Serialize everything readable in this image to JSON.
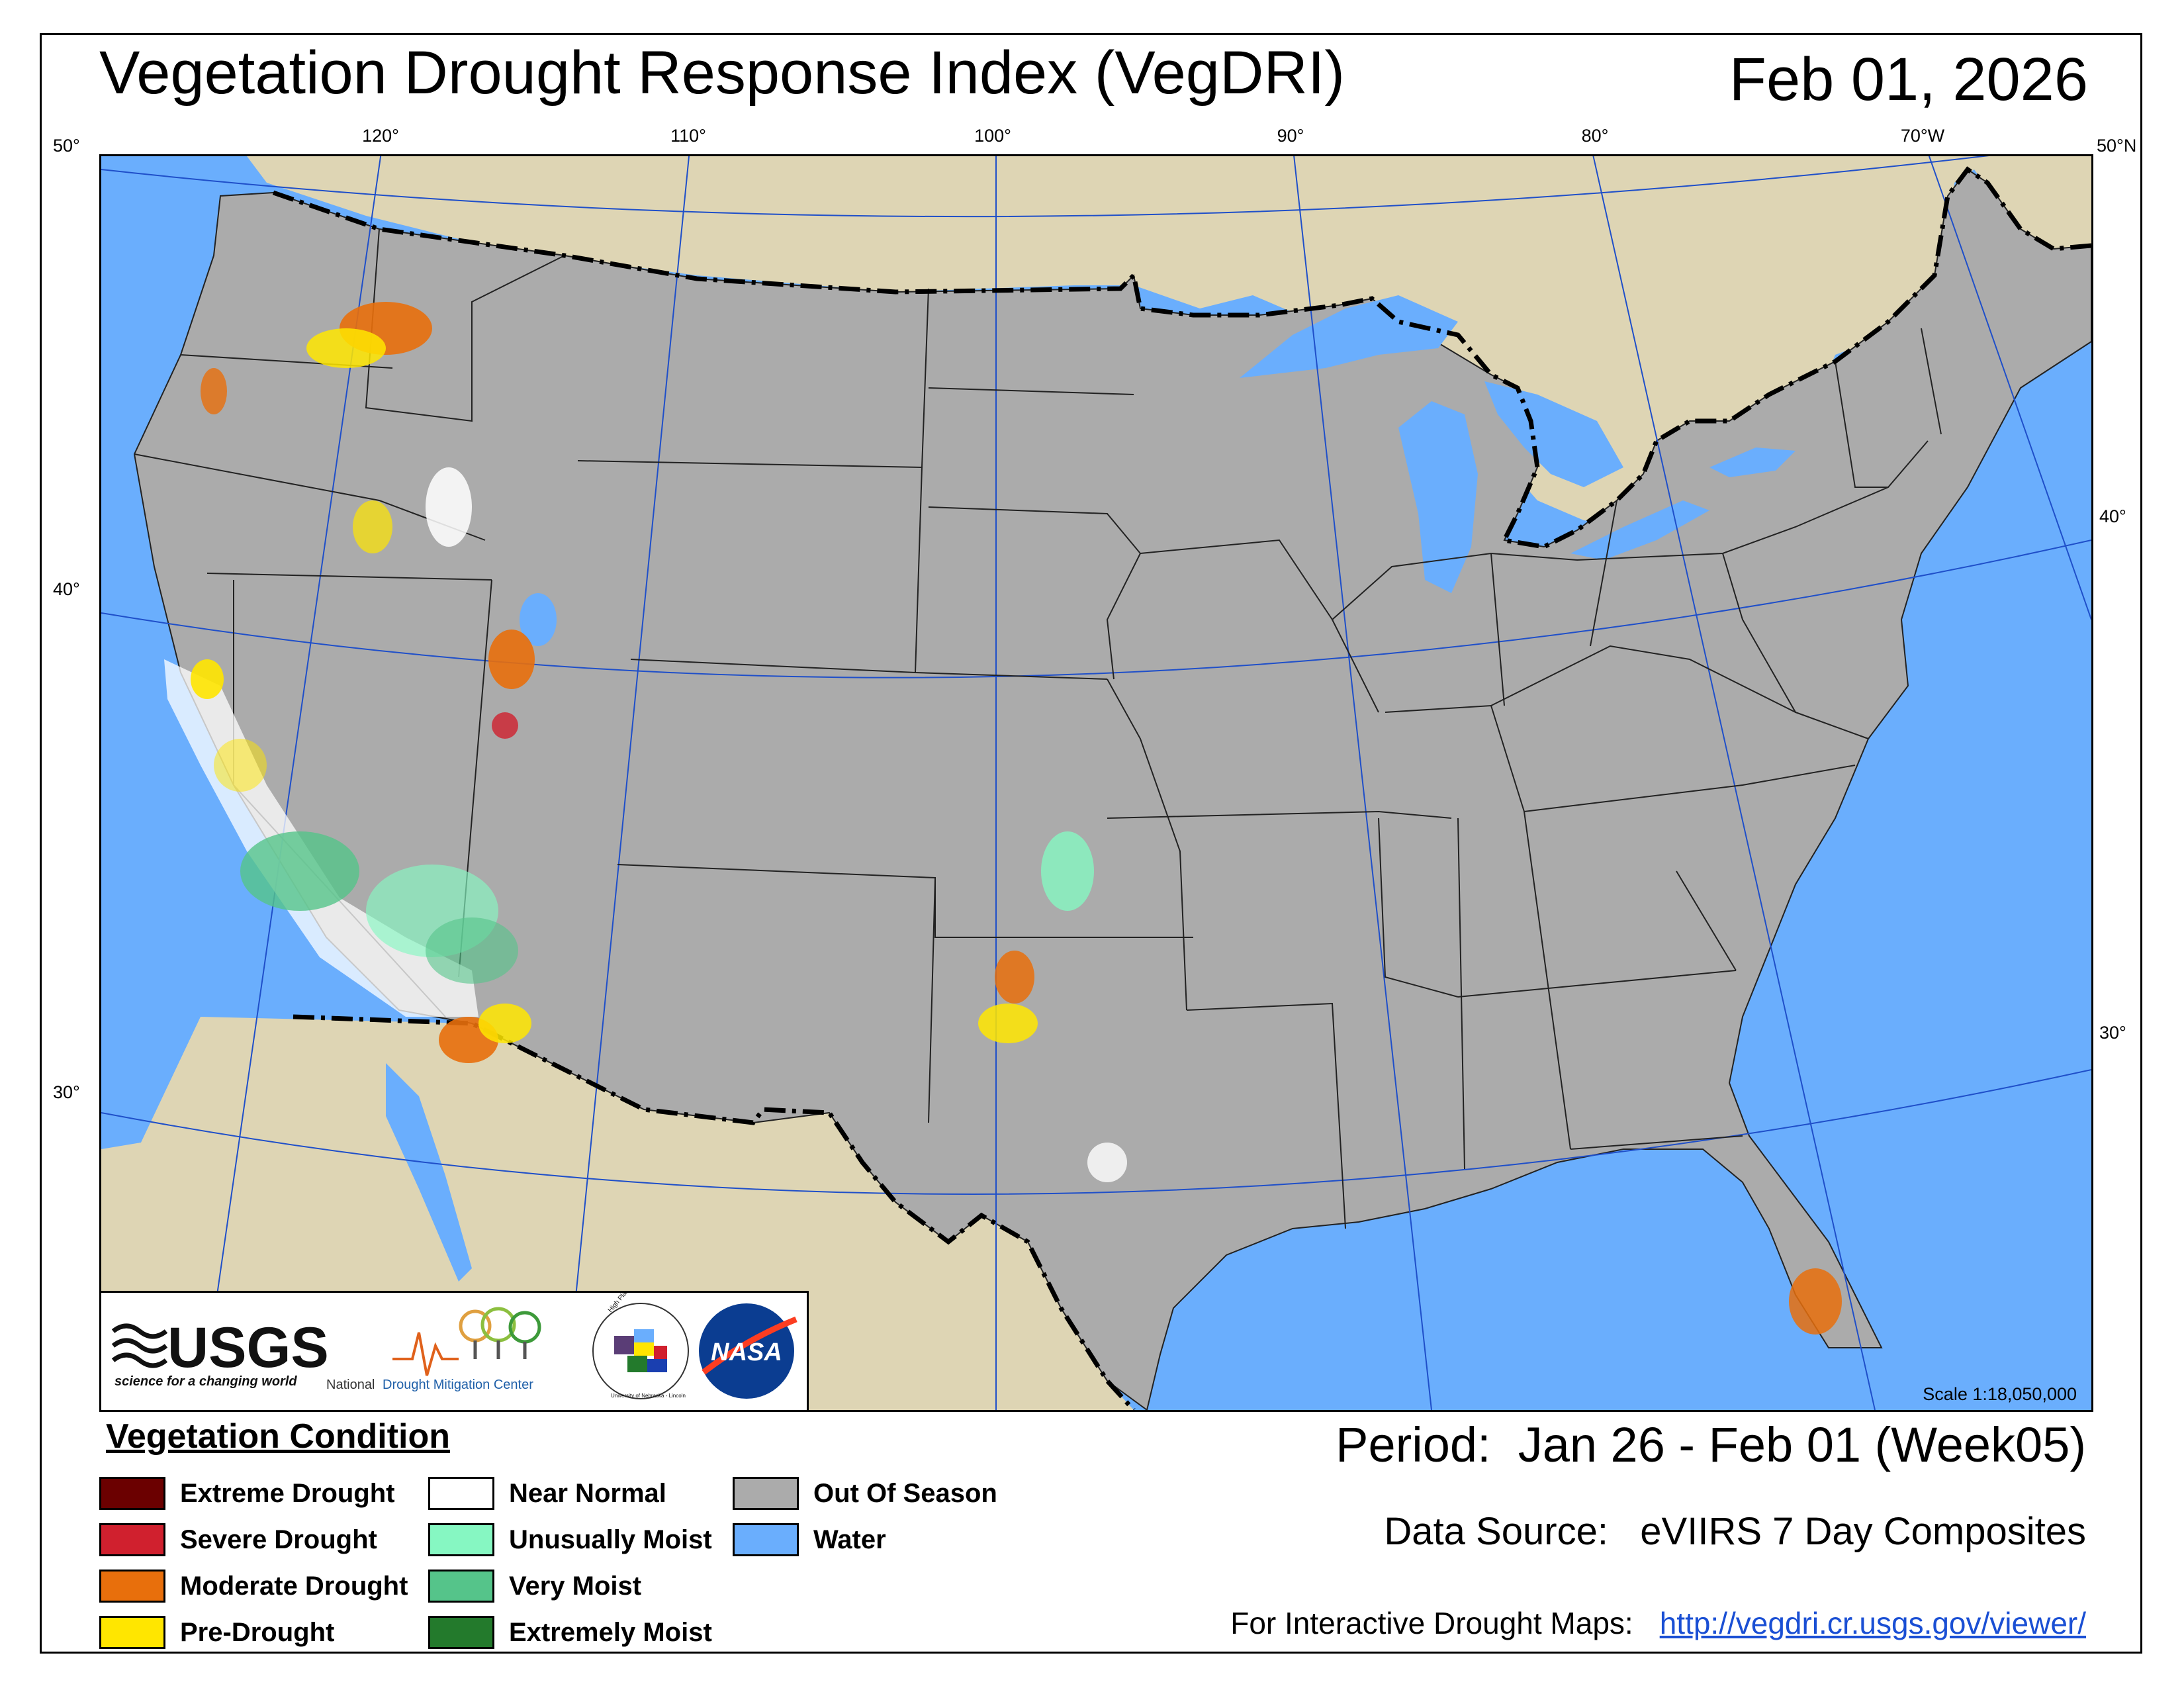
{
  "header": {
    "title": "Vegetation Drought Response Index (VegDRI)",
    "date": "Feb 01, 2026"
  },
  "graticule": {
    "lon_labels": [
      "120°",
      "110°",
      "100°",
      "90°",
      "80°",
      "70°W"
    ],
    "lat_left": [
      "50°",
      "40°",
      "30°"
    ],
    "lat_right": [
      "50°N",
      "40°",
      "30°"
    ]
  },
  "map": {
    "scale": "Scale 1:18,050,000",
    "colors": {
      "water": "#6aaefd",
      "land_outside": "#ded5b4",
      "out_of_season": "#ababab"
    }
  },
  "logos": {
    "usgs_name": "USGS",
    "usgs_tagline": "science for a changing world",
    "ndmc_word1": "National",
    "ndmc_word2": "Drought Mitigation Center",
    "hprcc_ring": "High Plains Regional Climate Center",
    "hprcc_ring_bottom": "University of Nebraska - Lincoln",
    "nasa": "NASA"
  },
  "legend": {
    "title": "Vegetation Condition",
    "items": [
      {
        "label": "Extreme Drought",
        "color": "#6b0000"
      },
      {
        "label": "Severe Drought",
        "color": "#d0202e"
      },
      {
        "label": "Moderate Drought",
        "color": "#e86f0c"
      },
      {
        "label": "Pre-Drought",
        "color": "#ffe600"
      },
      {
        "label": "Near Normal",
        "color": "#ffffff"
      },
      {
        "label": "Unusually Moist",
        "color": "#86f7c2"
      },
      {
        "label": "Very Moist",
        "color": "#55c48a"
      },
      {
        "label": "Extremely Moist",
        "color": "#237a2c"
      },
      {
        "label": "Out Of Season",
        "color": "#ababab"
      },
      {
        "label": "Water",
        "color": "#6aaefd"
      }
    ]
  },
  "info": {
    "period_label": "Period:",
    "period_value": "Jan 26 - Feb 01 (Week05)",
    "source_label": "Data Source:",
    "source_value": "eVIIRS 7 Day Composites",
    "interactive_label": "For Interactive Drought Maps:",
    "interactive_url": "http://vegdri.cr.usgs.gov/viewer/"
  }
}
